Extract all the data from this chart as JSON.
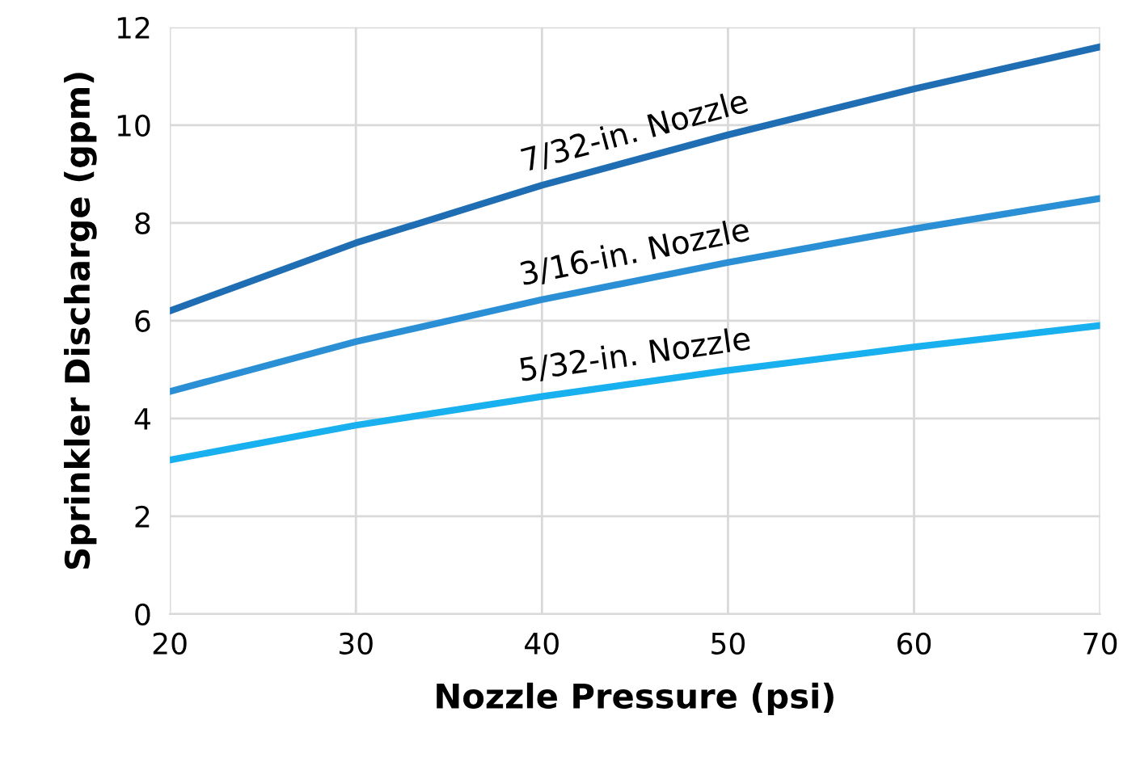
{
  "chart_data": {
    "type": "line",
    "xlabel": "Nozzle Pressure (psi)",
    "ylabel": "Sprinkler Discharge (gpm)",
    "x": [
      20,
      30,
      40,
      50,
      60,
      70
    ],
    "series": [
      {
        "name": "7/32-in. Nozzle",
        "color": "#1f6db3",
        "values": [
          6.2,
          7.59,
          8.77,
          9.8,
          10.74,
          11.6
        ]
      },
      {
        "name": "3/16-in. Nozzle",
        "color": "#2b8fd6",
        "values": [
          4.55,
          5.57,
          6.43,
          7.19,
          7.88,
          8.5
        ]
      },
      {
        "name": "5/32-in. Nozzle",
        "color": "#18b0ef",
        "values": [
          3.15,
          3.86,
          4.45,
          4.98,
          5.46,
          5.9
        ]
      }
    ],
    "xlim": [
      20,
      70
    ],
    "ylim": [
      0,
      12
    ],
    "xticks": [
      20,
      30,
      40,
      50,
      60,
      70
    ],
    "yticks": [
      0,
      2,
      4,
      6,
      8,
      10,
      12
    ],
    "grid": true,
    "legend": false,
    "marker": "none",
    "line_style": "solid"
  }
}
